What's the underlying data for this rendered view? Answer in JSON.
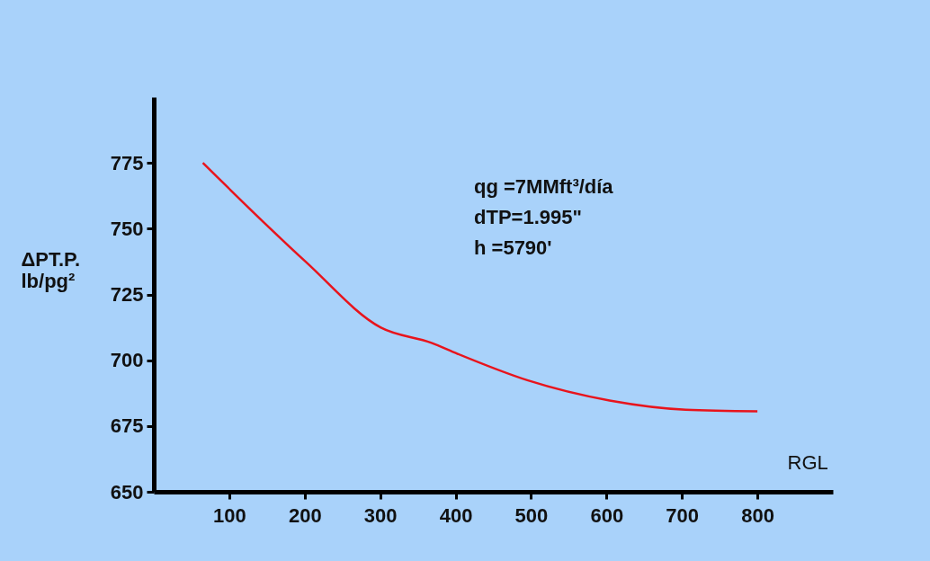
{
  "chart_data": {
    "type": "line",
    "xlabel": "RGL",
    "ylabel": "ΔPT.P.\nlb/pg²",
    "x": [
      65,
      201,
      301,
      368,
      402,
      495,
      604,
      705,
      800
    ],
    "series": [
      {
        "color": "#e8141c",
        "values": [
          775,
          737.5,
          712.4,
          706.6,
          702.5,
          692.4,
          684.7,
          681.2,
          680.6
        ]
      }
    ],
    "xlim": [
      0,
      900
    ],
    "xticks": [
      100,
      200,
      300,
      400,
      500,
      600,
      700,
      800
    ],
    "ylim": [
      650,
      800
    ],
    "yticks": [
      650,
      675,
      700,
      725,
      750,
      775
    ],
    "grid": false,
    "marker": "none",
    "line_style": "solid",
    "annotations": [
      "qg =7MMft³/día",
      "dTP=1.995\"",
      "h =5790'"
    ]
  }
}
